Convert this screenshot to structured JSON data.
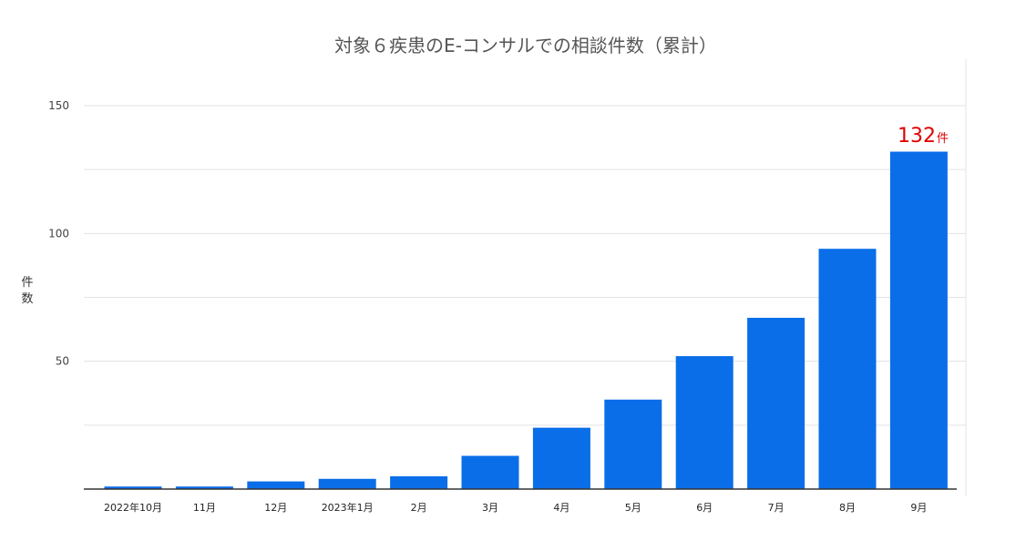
{
  "chart_data": {
    "type": "bar",
    "title": "対象６疾患のE-コンサルでの相談件数（累計）",
    "xlabel": "",
    "ylabel": "件数",
    "categories": [
      "2022年10月",
      "11月",
      "12月",
      "2023年1月",
      "2月",
      "3月",
      "4月",
      "5月",
      "6月",
      "7月",
      "8月",
      "9月"
    ],
    "values": [
      1,
      1,
      3,
      4,
      5,
      13,
      24,
      35,
      52,
      67,
      94,
      132
    ],
    "ylim": [
      0,
      150
    ],
    "yticks": [
      50,
      100,
      150
    ],
    "grid": true,
    "colors": {
      "bar": "#0a6ee8",
      "annotation": "#e00000"
    },
    "annotation": {
      "value": "132",
      "unit": "件"
    }
  }
}
